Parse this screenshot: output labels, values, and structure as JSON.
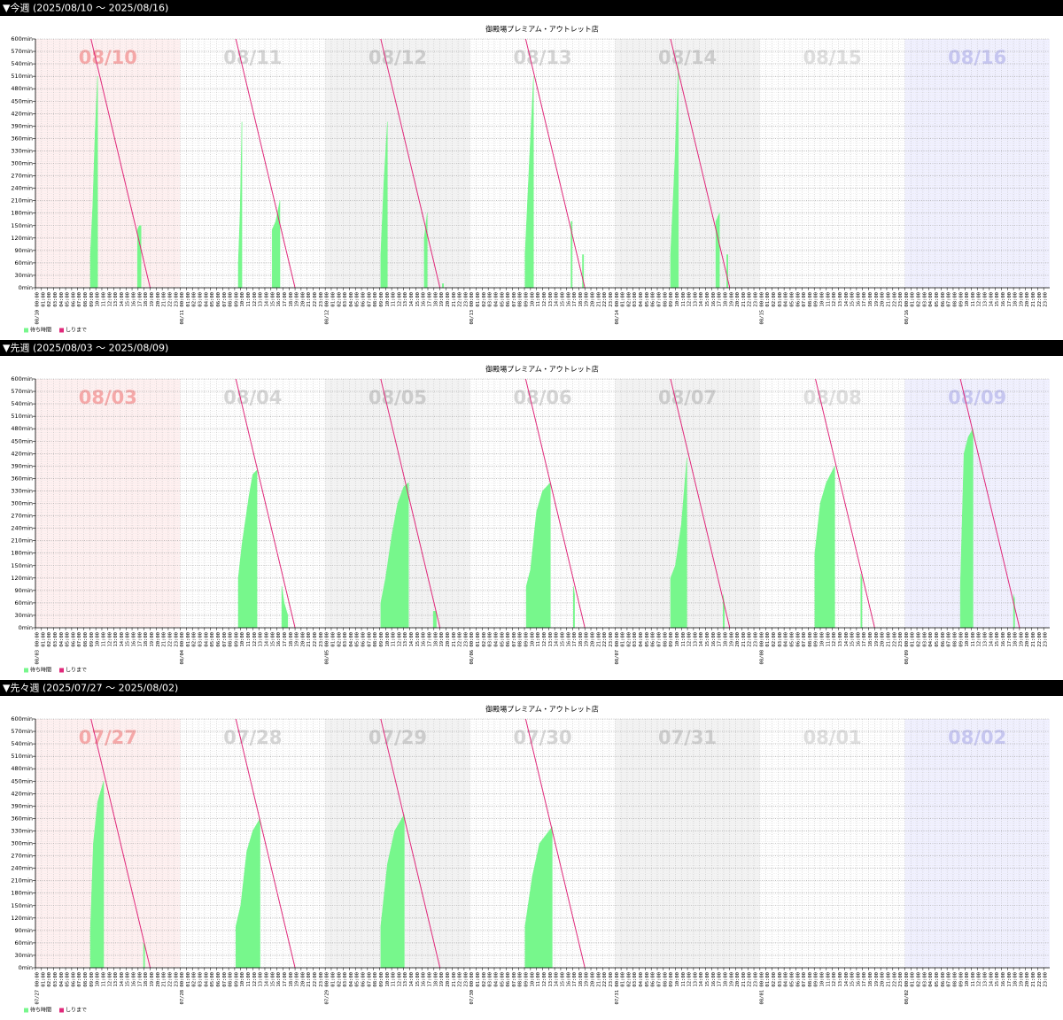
{
  "headers": [
    "▼今週 (2025/08/10 ～ 2025/08/16)",
    "▼先週 (2025/08/03 ～ 2025/08/09)",
    "▼先々週 (2025/07/27 ～ 2025/08/02)"
  ],
  "hour_labels": [
    "01:00",
    "02:00",
    "03:00",
    "04:00",
    "05:00",
    "06:00",
    "07:00",
    "08:00",
    "09:00",
    "10:00",
    "11:00",
    "12:00",
    "13:00",
    "14:00",
    "15:00",
    "16:00",
    "17:00",
    "18:00",
    "19:00",
    "20:00",
    "21:00",
    "22:00",
    "23:00"
  ],
  "chart_data": [
    {
      "type": "area",
      "title": "御殿場プレミアム・アウトレット店",
      "day_labels": [
        "08/10",
        "08/11",
        "08/12",
        "08/13",
        "08/14",
        "08/15",
        "08/16"
      ],
      "x_day_labels": [
        "08/10 00:00",
        "08/11 00:00",
        "08/12 00:00",
        "08/13 00:00",
        "08/14 00:00",
        "08/15 00:00",
        "08/16 00:00"
      ],
      "xlim": [
        0,
        168
      ],
      "ylim": [
        0,
        600
      ],
      "yticks": [
        {
          "value": 0,
          "label": "0min"
        },
        {
          "value": 30,
          "label": "30min"
        },
        {
          "value": 60,
          "label": "60min"
        },
        {
          "value": 90,
          "label": "90min"
        },
        {
          "value": 120,
          "label": "120min"
        },
        {
          "value": 150,
          "label": "150min"
        },
        {
          "value": 180,
          "label": "180min"
        },
        {
          "value": 210,
          "label": "210min"
        },
        {
          "value": 240,
          "label": "240min"
        },
        {
          "value": 270,
          "label": "270min"
        },
        {
          "value": 300,
          "label": "300min"
        },
        {
          "value": 330,
          "label": "330min"
        },
        {
          "value": 360,
          "label": "360min"
        },
        {
          "value": 390,
          "label": "390min"
        },
        {
          "value": 420,
          "label": "420min"
        },
        {
          "value": 450,
          "label": "450min"
        },
        {
          "value": 480,
          "label": "480min"
        },
        {
          "value": 510,
          "label": "510min"
        },
        {
          "value": 540,
          "label": "540min"
        },
        {
          "value": 570,
          "label": "570min"
        },
        {
          "value": 600,
          "label": "600min"
        }
      ],
      "grid": true,
      "legend": "bottom-left",
      "series": [
        {
          "name": "待ち時間",
          "type": "area",
          "color": "#77f78c",
          "x": [
            9.1,
            9.5,
            9.9,
            10.3,
            null,
            16.9,
            17.2,
            17.5,
            null,
            33.6,
            33.9,
            34.2,
            null,
            39.2,
            39.8,
            40.5,
            null,
            57.2,
            57.7,
            58.3,
            null,
            64.4,
            64.9,
            null,
            67.4,
            67.6,
            null,
            81.1,
            81.8,
            82.5,
            null,
            88.7,
            88.9,
            null,
            90.6,
            90.8,
            null,
            105.2,
            105.9,
            106.5,
            null,
            112.7,
            113.3,
            null,
            114.5,
            114.7
          ],
          "values": [
            80,
            200,
            380,
            510,
            null,
            140,
            150,
            150,
            null,
            60,
            180,
            400,
            null,
            140,
            160,
            210,
            null,
            80,
            250,
            400,
            null,
            120,
            180,
            null,
            10,
            10,
            null,
            80,
            300,
            510,
            null,
            160,
            160,
            null,
            80,
            80,
            null,
            80,
            300,
            540,
            null,
            160,
            180,
            null,
            80,
            80
          ]
        },
        {
          "name": "しりまで",
          "type": "line",
          "color": "#e0287a",
          "x": [
            9.2,
            19.0,
            null,
            33.2,
            43.0,
            null,
            57.2,
            67.0,
            null,
            81.2,
            91.0,
            null,
            105.2,
            115.0
          ],
          "values": [
            600,
            0,
            null,
            600,
            0,
            null,
            600,
            0,
            null,
            600,
            0,
            null,
            600,
            0
          ]
        }
      ]
    },
    {
      "type": "area",
      "title": "御殿場プレミアム・アウトレット店",
      "day_labels": [
        "08/03",
        "08/04",
        "08/05",
        "08/06",
        "08/07",
        "08/08",
        "08/09"
      ],
      "x_day_labels": [
        "08/03 00:00",
        "08/04 00:00",
        "08/05 00:00",
        "08/06 00:00",
        "08/07 00:00",
        "08/08 00:00",
        "08/09 00:00"
      ],
      "xlim": [
        0,
        168
      ],
      "ylim": [
        0,
        600
      ],
      "yticks": [
        {
          "value": 0,
          "label": "0min"
        },
        {
          "value": 30,
          "label": "30min"
        },
        {
          "value": 60,
          "label": "60min"
        },
        {
          "value": 90,
          "label": "90min"
        },
        {
          "value": 120,
          "label": "120min"
        },
        {
          "value": 150,
          "label": "150min"
        },
        {
          "value": 180,
          "label": "180min"
        },
        {
          "value": 210,
          "label": "210min"
        },
        {
          "value": 240,
          "label": "240min"
        },
        {
          "value": 270,
          "label": "270min"
        },
        {
          "value": 300,
          "label": "300min"
        },
        {
          "value": 330,
          "label": "330min"
        },
        {
          "value": 360,
          "label": "360min"
        },
        {
          "value": 390,
          "label": "390min"
        },
        {
          "value": 420,
          "label": "420min"
        },
        {
          "value": 450,
          "label": "450min"
        },
        {
          "value": 480,
          "label": "480min"
        },
        {
          "value": 510,
          "label": "510min"
        },
        {
          "value": 540,
          "label": "540min"
        },
        {
          "value": 570,
          "label": "570min"
        },
        {
          "value": 600,
          "label": "600min"
        }
      ],
      "grid": true,
      "legend": "bottom-left",
      "series": [
        {
          "name": "待ち時間",
          "type": "area",
          "color": "#77f78c",
          "x": [
            33.6,
            34.2,
            34.8,
            35.4,
            36.0,
            36.7,
            null,
            40.8,
            41.2,
            41.8,
            null,
            57.2,
            58.0,
            59.0,
            60.0,
            61.0,
            61.8,
            null,
            65.9,
            66.4,
            null,
            81.3,
            82.0,
            83.0,
            84.0,
            85.3,
            null,
            89.1,
            89.3,
            null,
            105.2,
            106.0,
            107.0,
            107.9,
            null,
            113.9,
            114.1,
            null,
            129.1,
            130.0,
            131.0,
            132.4,
            null,
            136.7,
            136.9,
            null,
            153.2,
            153.8,
            154.5,
            155.3,
            null,
            162.0,
            162.2
          ],
          "values": [
            120,
            200,
            260,
            320,
            370,
            380,
            null,
            100,
            60,
            30,
            null,
            60,
            120,
            220,
            300,
            340,
            350,
            null,
            40,
            40,
            null,
            100,
            140,
            280,
            330,
            350,
            null,
            100,
            80,
            null,
            120,
            150,
            250,
            410,
            null,
            80,
            60,
            null,
            180,
            300,
            350,
            390,
            null,
            130,
            120,
            null,
            100,
            420,
            460,
            480,
            null,
            80,
            70
          ]
        },
        {
          "name": "しりまで",
          "type": "line",
          "color": "#e0287a",
          "x": [
            33.2,
            43.0,
            null,
            57.2,
            67.0,
            null,
            81.2,
            91.0,
            null,
            105.2,
            115.0,
            null,
            129.2,
            139.0,
            null,
            153.2,
            163.0
          ],
          "values": [
            600,
            0,
            null,
            600,
            0,
            null,
            600,
            0,
            null,
            600,
            0,
            null,
            600,
            0,
            null,
            600,
            0
          ]
        }
      ]
    },
    {
      "type": "area",
      "title": "御殿場プレミアム・アウトレット店",
      "day_labels": [
        "07/27",
        "07/28",
        "07/29",
        "07/30",
        "07/31",
        "08/01",
        "08/02"
      ],
      "x_day_labels": [
        "07/27 00:00",
        "07/28 00:00",
        "07/29 00:00",
        "07/30 00:00",
        "07/31 00:00",
        "08/01 00:00",
        "08/02 00:00"
      ],
      "xlim": [
        0,
        168
      ],
      "ylim": [
        0,
        600
      ],
      "yticks": [
        {
          "value": 0,
          "label": "0min"
        },
        {
          "value": 30,
          "label": "30min"
        },
        {
          "value": 60,
          "label": "60min"
        },
        {
          "value": 90,
          "label": "90min"
        },
        {
          "value": 120,
          "label": "120min"
        },
        {
          "value": 150,
          "label": "150min"
        },
        {
          "value": 180,
          "label": "180min"
        },
        {
          "value": 210,
          "label": "210min"
        },
        {
          "value": 240,
          "label": "240min"
        },
        {
          "value": 270,
          "label": "270min"
        },
        {
          "value": 300,
          "label": "300min"
        },
        {
          "value": 330,
          "label": "330min"
        },
        {
          "value": 360,
          "label": "360min"
        },
        {
          "value": 390,
          "label": "390min"
        },
        {
          "value": 420,
          "label": "420min"
        },
        {
          "value": 450,
          "label": "450min"
        },
        {
          "value": 480,
          "label": "480min"
        },
        {
          "value": 510,
          "label": "510min"
        },
        {
          "value": 540,
          "label": "540min"
        },
        {
          "value": 570,
          "label": "570min"
        },
        {
          "value": 600,
          "label": "600min"
        }
      ],
      "grid": true,
      "legend": "bottom-left",
      "series": [
        {
          "name": "待ち時間",
          "type": "area",
          "color": "#77f78c",
          "x": [
            9.1,
            9.6,
            10.3,
            11.3,
            null,
            17.9,
            18.1,
            null,
            33.2,
            34.0,
            35.0,
            36.0,
            37.2,
            null,
            57.2,
            58.3,
            59.5,
            61.1,
            null,
            81.1,
            82.3,
            83.5,
            85.6
          ],
          "values": [
            90,
            300,
            400,
            450,
            null,
            60,
            50,
            null,
            100,
            150,
            280,
            330,
            360,
            null,
            100,
            250,
            330,
            370,
            null,
            100,
            220,
            300,
            340
          ]
        },
        {
          "name": "しりまで",
          "type": "line",
          "color": "#e0287a",
          "x": [
            9.2,
            19.0,
            null,
            33.2,
            43.0,
            null,
            57.2,
            67.0,
            null,
            81.2,
            91.0
          ],
          "values": [
            600,
            0,
            null,
            600,
            0,
            null,
            600,
            0,
            null,
            600,
            0
          ]
        }
      ]
    }
  ]
}
